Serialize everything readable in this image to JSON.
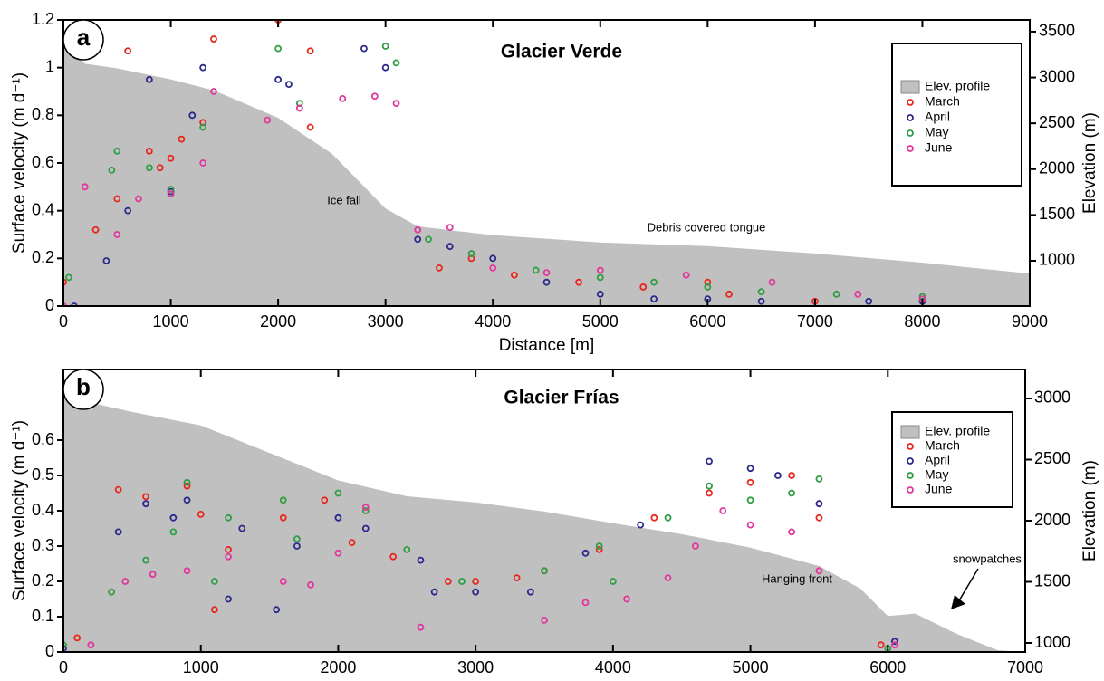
{
  "chart_data": [
    {
      "type": "scatter",
      "panel": "a",
      "title": "Glacier Verde",
      "x_label": "Distance [m]",
      "y_label": "Surface velocity (m d⁻¹)",
      "y2_label": "Elevation (m)",
      "xlim": [
        0,
        9000
      ],
      "xticks": [
        0,
        1000,
        2000,
        3000,
        4000,
        5000,
        6000,
        7000,
        8000,
        9000
      ],
      "ylim": [
        0,
        1.2
      ],
      "yticks": [
        0,
        0.2,
        0.4,
        0.6,
        0.8,
        1,
        1.2
      ],
      "y2lim": [
        506,
        3628
      ],
      "y2ticks": [
        1000,
        1500,
        2000,
        2500,
        3000,
        3500
      ],
      "legend": "upper right",
      "annotations": [
        "Ice fall",
        "Debris covered tongue"
      ],
      "series": [
        {
          "name": "Elev. profile",
          "type": "area",
          "axis": "y2",
          "color": "#c0c0c0",
          "x": [
            0,
            200,
            500,
            1000,
            1400,
            2000,
            2500,
            3000,
            3300,
            4000,
            5000,
            6000,
            7000,
            8000,
            8500,
            9000
          ],
          "values": [
            3400,
            3150,
            3100,
            2980,
            2860,
            2560,
            2170,
            1570,
            1375,
            1280,
            1200,
            1160,
            1080,
            980,
            920,
            860
          ]
        },
        {
          "name": "March",
          "color": "#e8281e",
          "x": [
            0,
            300,
            500,
            600,
            800,
            900,
            1000,
            1100,
            1300,
            1400,
            2000,
            2300,
            2300,
            3500,
            3800,
            4200,
            4800,
            5400,
            6000,
            6200,
            7000,
            8000
          ],
          "values": [
            0.1,
            0.32,
            0.45,
            1.07,
            0.65,
            0.58,
            0.62,
            0.7,
            0.77,
            1.12,
            1.2,
            0.75,
            1.07,
            0.16,
            0.2,
            0.13,
            0.1,
            0.08,
            0.1,
            0.05,
            0.02,
            0.02
          ]
        },
        {
          "name": "April",
          "color": "#2b2a8c",
          "x": [
            100,
            400,
            600,
            800,
            1000,
            1200,
            1300,
            2000,
            2100,
            2800,
            3000,
            3300,
            3600,
            4000,
            4500,
            5000,
            5500,
            6000,
            6500,
            7500,
            8000
          ],
          "values": [
            0,
            0.19,
            0.4,
            0.95,
            0.48,
            0.8,
            1.0,
            0.95,
            0.93,
            1.08,
            1.0,
            0.28,
            0.25,
            0.2,
            0.1,
            0.05,
            0.03,
            0.03,
            0.02,
            0.02,
            0.02
          ]
        },
        {
          "name": "May",
          "color": "#2f9e44",
          "x": [
            50,
            450,
            500,
            800,
            1000,
            1300,
            2000,
            2200,
            3000,
            3100,
            3400,
            3800,
            4400,
            5000,
            5500,
            6000,
            6500,
            7200,
            8000
          ],
          "values": [
            0.12,
            0.57,
            0.65,
            0.58,
            0.49,
            0.75,
            1.08,
            0.85,
            1.09,
            1.02,
            0.28,
            0.22,
            0.15,
            0.12,
            0.1,
            0.08,
            0.06,
            0.05,
            0.04
          ]
        },
        {
          "name": "June",
          "color": "#e0389c",
          "x": [
            0,
            200,
            500,
            700,
            1000,
            1300,
            1400,
            1900,
            2200,
            2600,
            2900,
            3100,
            3300,
            3600,
            4000,
            4500,
            5000,
            5800,
            6600,
            7400,
            8000
          ],
          "values": [
            0,
            0.5,
            0.3,
            0.45,
            0.47,
            0.6,
            0.9,
            0.78,
            0.83,
            0.87,
            0.88,
            0.85,
            0.32,
            0.33,
            0.16,
            0.14,
            0.15,
            0.13,
            0.1,
            0.05,
            0.03
          ]
        }
      ]
    },
    {
      "type": "scatter",
      "panel": "b",
      "title": "Glacier Frías",
      "y_label": "Surface velocity (m d⁻¹)",
      "y2_label": "Elevation (m)",
      "xlim": [
        0,
        7000
      ],
      "xticks": [
        0,
        1000,
        2000,
        3000,
        4000,
        5000,
        6000,
        7000
      ],
      "ylim": [
        0,
        0.8
      ],
      "yticks": [
        0,
        0.1,
        0.2,
        0.3,
        0.4,
        0.5,
        0.6
      ],
      "y2lim": [
        926,
        3237
      ],
      "y2ticks": [
        1000,
        1500,
        2000,
        2500,
        3000
      ],
      "legend": "upper right",
      "annotations": [
        "Hanging front",
        "snowpatches"
      ],
      "series": [
        {
          "name": "Elev. profile",
          "type": "area",
          "axis": "y2",
          "color": "#c0c0c0",
          "x": [
            0,
            500,
            1000,
            1500,
            2000,
            2500,
            3000,
            3500,
            4000,
            4500,
            5000,
            5500,
            5800,
            6000,
            6200,
            6500,
            6800,
            7000
          ],
          "values": [
            3015,
            2890,
            2780,
            2555,
            2330,
            2200,
            2150,
            2075,
            1980,
            1890,
            1780,
            1630,
            1445,
            1220,
            1240,
            1075,
            940,
            926
          ]
        },
        {
          "name": "March",
          "color": "#e8281e",
          "x": [
            100,
            400,
            600,
            900,
            1000,
            1100,
            1200,
            1600,
            1900,
            2100,
            2400,
            2800,
            3000,
            3300,
            3500,
            3900,
            4300,
            4700,
            5000,
            5300,
            5500,
            5950
          ],
          "values": [
            0.04,
            0.46,
            0.44,
            0.47,
            0.39,
            0.12,
            0.29,
            0.38,
            0.43,
            0.31,
            0.27,
            0.2,
            0.2,
            0.21,
            0.23,
            0.29,
            0.38,
            0.45,
            0.48,
            0.5,
            0.38,
            0.02
          ]
        },
        {
          "name": "April",
          "color": "#2b2a8c",
          "x": [
            0,
            400,
            600,
            800,
            900,
            1200,
            1300,
            1550,
            1700,
            2000,
            2200,
            2600,
            2700,
            3000,
            3400,
            3800,
            4200,
            4700,
            5000,
            5200,
            5500,
            6050
          ],
          "values": [
            0.01,
            0.34,
            0.42,
            0.38,
            0.43,
            0.15,
            0.35,
            0.12,
            0.3,
            0.38,
            0.35,
            0.26,
            0.17,
            0.17,
            0.17,
            0.28,
            0.36,
            0.54,
            0.52,
            0.5,
            0.42,
            0.03
          ]
        },
        {
          "name": "May",
          "color": "#2f9e44",
          "x": [
            0,
            350,
            600,
            800,
            900,
            1100,
            1200,
            1600,
            1700,
            2000,
            2200,
            2500,
            2900,
            3500,
            3900,
            4000,
            4400,
            4700,
            5000,
            5300,
            5500,
            6000
          ],
          "values": [
            0.02,
            0.17,
            0.26,
            0.34,
            0.48,
            0.2,
            0.38,
            0.43,
            0.32,
            0.45,
            0.4,
            0.29,
            0.2,
            0.23,
            0.3,
            0.2,
            0.38,
            0.47,
            0.43,
            0.45,
            0.49,
            0.01
          ]
        },
        {
          "name": "June",
          "color": "#e0389c",
          "x": [
            200,
            450,
            650,
            900,
            1200,
            1600,
            1800,
            2000,
            2200,
            2600,
            3500,
            3800,
            4100,
            4400,
            4600,
            4800,
            5000,
            5300,
            5500,
            6050
          ],
          "values": [
            0.02,
            0.2,
            0.22,
            0.23,
            0.27,
            0.2,
            0.19,
            0.28,
            0.41,
            0.07,
            0.09,
            0.14,
            0.15,
            0.21,
            0.3,
            0.4,
            0.36,
            0.34,
            0.23,
            0.02
          ]
        }
      ]
    }
  ]
}
